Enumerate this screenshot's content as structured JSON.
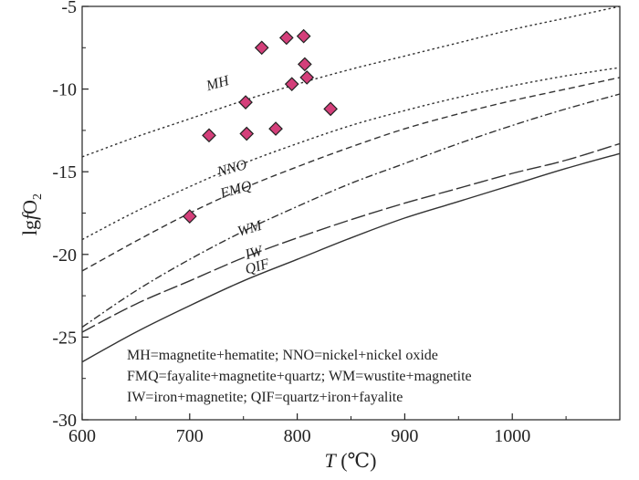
{
  "chart_data": {
    "type": "line",
    "xlabel_italic": "T",
    "xlabel_unit": " (℃)",
    "ylabel_text": "lg",
    "ylabel_f": "f",
    "ylabel_o": "O",
    "ylabel_sub": "2",
    "xlim": [
      600,
      1100
    ],
    "ylim": [
      -30,
      -5
    ],
    "xticks": [
      600,
      700,
      800,
      900,
      1000
    ],
    "yticks": [
      -5,
      -10,
      -15,
      -20,
      -25,
      -30
    ],
    "series": [
      {
        "name": "MH",
        "style": "dotted",
        "x": [
          600,
          650,
          700,
          750,
          800,
          850,
          900,
          950,
          1000,
          1050,
          1100
        ],
        "y": [
          -14.1,
          -12.9,
          -11.8,
          -10.7,
          -9.7,
          -8.8,
          -8.0,
          -7.2,
          -6.4,
          -5.7,
          -5.0
        ]
      },
      {
        "name": "NNO",
        "style": "dotted",
        "x": [
          600,
          650,
          700,
          750,
          800,
          850,
          900,
          950,
          1000,
          1050,
          1100
        ],
        "y": [
          -19.1,
          -17.4,
          -15.9,
          -14.5,
          -13.3,
          -12.2,
          -11.3,
          -10.5,
          -9.8,
          -9.2,
          -8.7
        ]
      },
      {
        "name": "FMQ",
        "style": "dashed",
        "x": [
          600,
          650,
          700,
          750,
          800,
          850,
          900,
          950,
          1000,
          1050,
          1100
        ],
        "y": [
          -21.0,
          -19.2,
          -17.5,
          -16.0,
          -14.7,
          -13.5,
          -12.4,
          -11.5,
          -10.7,
          -10.0,
          -9.3
        ]
      },
      {
        "name": "WM",
        "style": "dashdot",
        "x": [
          600,
          650,
          700,
          750,
          800,
          850,
          900,
          950,
          1000,
          1050,
          1100
        ],
        "y": [
          -24.4,
          -22.2,
          -20.3,
          -18.6,
          -17.1,
          -15.7,
          -14.5,
          -13.3,
          -12.2,
          -11.2,
          -10.3
        ]
      },
      {
        "name": "IW",
        "style": "longdash",
        "x": [
          600,
          650,
          700,
          750,
          800,
          850,
          900,
          950,
          1000,
          1050,
          1100
        ],
        "y": [
          -24.7,
          -23.0,
          -21.6,
          -20.2,
          -19.0,
          -17.9,
          -16.9,
          -16.0,
          -15.1,
          -14.3,
          -13.3
        ]
      },
      {
        "name": "QIF",
        "style": "solid",
        "x": [
          600,
          650,
          700,
          750,
          800,
          850,
          900,
          950,
          1000,
          1050,
          1100
        ],
        "y": [
          -26.5,
          -24.7,
          -23.1,
          -21.6,
          -20.3,
          -19.0,
          -17.8,
          -16.8,
          -15.8,
          -14.8,
          -13.9
        ]
      }
    ],
    "curve_labels": [
      {
        "name": "MH",
        "text": "MH",
        "at": [
          717,
          -10.1
        ]
      },
      {
        "name": "NNO",
        "text": "NNO",
        "at": [
          727,
          -15.3
        ]
      },
      {
        "name": "FMQ",
        "text": "FMQ",
        "at": [
          730,
          -16.6
        ]
      },
      {
        "name": "WM",
        "text": "WM",
        "at": [
          746,
          -18.9
        ]
      },
      {
        "name": "IW",
        "text": "IW",
        "at": [
          753,
          -20.3
        ]
      },
      {
        "name": "QIF",
        "text": "QIF",
        "at": [
          753,
          -21.2
        ]
      }
    ],
    "points": {
      "name": "samples",
      "color": "#d43f7a",
      "x": [
        700,
        718,
        752,
        753,
        767,
        780,
        790,
        795,
        806,
        807,
        809,
        831
      ],
      "y": [
        -17.7,
        -12.8,
        -10.8,
        -12.7,
        -7.5,
        -12.4,
        -6.9,
        -9.7,
        -6.8,
        -8.5,
        -9.3,
        -11.2
      ]
    },
    "legend_lines": [
      "MH=magnetite+hematite; NNO=nickel+nickel oxide",
      "FMQ=fayalite+magnetite+quartz; WM=wustite+magnetite",
      "IW=iron+magnetite; QIF=quartz+iron+fayalite"
    ]
  }
}
